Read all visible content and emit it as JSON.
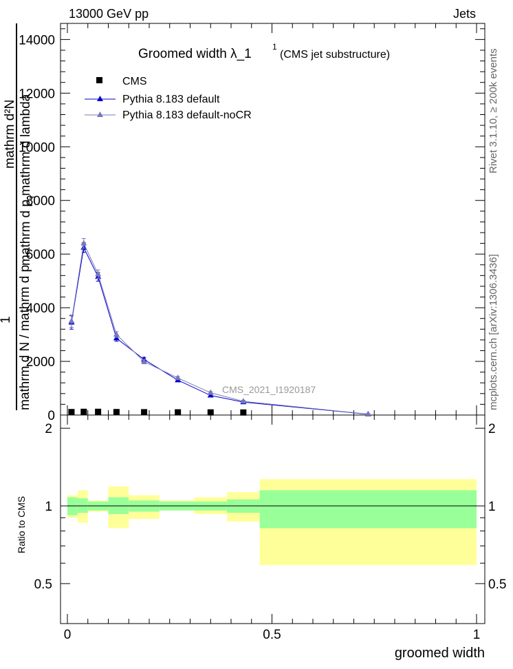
{
  "header": {
    "left": "13000 GeV pp",
    "right": "Jets"
  },
  "side_labels": {
    "rivet": "Rivet 3.1.10, ≥ 200k events",
    "mcplots": "mcplots.cern.ch [arXiv:1306.3436]"
  },
  "chart_data": [
    {
      "type": "line",
      "panel": "main",
      "title_main": "Groomed width  λ_1",
      "title_sup": "1",
      "title_sub": "(CMS jet substructure)",
      "ylabel_upper": "mathrm d²N",
      "ylabel_upper_den": "mathrm d p   mathrm d lambda",
      "ylabel_sub": "T",
      "ylabel_one": "1",
      "ylabel_lower": "mathrm d N / mathrm d p",
      "watermark": "CMS_2021_I1920187",
      "xlim": [
        0,
        1.02
      ],
      "ylim": [
        0,
        14600
      ],
      "yticks": [
        0,
        2000,
        4000,
        6000,
        8000,
        10000,
        12000,
        14000
      ],
      "ytick_labels": [
        "0",
        "2000",
        "4000",
        "6000",
        "8000",
        "10000",
        "12000",
        "14000"
      ],
      "legend": {
        "position": "top-left",
        "entries": [
          "CMS",
          "Pythia 8.183 default",
          "Pythia 8.183 default-noCR"
        ]
      },
      "series": [
        {
          "name": "CMS",
          "color": "#000000",
          "marker": "square",
          "x": [
            0.01,
            0.04,
            0.075,
            0.12,
            0.1875,
            0.27,
            0.35,
            0.43
          ],
          "y": [
            20,
            30,
            30,
            20,
            15,
            10,
            8,
            5
          ]
        },
        {
          "name": "Pythia 8.183 default",
          "color": "#0000cc",
          "marker": "triangle",
          "x": [
            0.01,
            0.04,
            0.075,
            0.12,
            0.1875,
            0.27,
            0.35,
            0.43,
            0.735
          ],
          "y": [
            3450,
            6240,
            5150,
            2860,
            2070,
            1300,
            730,
            480,
            30
          ],
          "err": [
            250,
            180,
            160,
            110,
            80,
            60,
            45,
            40,
            15
          ]
        },
        {
          "name": "Pythia 8.183 default-noCR",
          "color": "#7777bb",
          "marker": "triangle",
          "x": [
            0.01,
            0.04,
            0.075,
            0.12,
            0.1875,
            0.27,
            0.35,
            0.43,
            0.735
          ],
          "y": [
            3500,
            6400,
            5250,
            3000,
            1990,
            1380,
            830,
            510,
            35
          ],
          "err": [
            230,
            180,
            160,
            110,
            80,
            60,
            45,
            40,
            15
          ]
        }
      ]
    },
    {
      "type": "area",
      "panel": "ratio",
      "ylabel": "Ratio to CMS",
      "xlabel": "groomed width",
      "xlim": [
        0,
        1.02
      ],
      "ylim": [
        0.35,
        2.25
      ],
      "xticks": [
        0,
        0.5,
        1
      ],
      "xtick_labels": [
        "0",
        "0.5",
        "1"
      ],
      "yticks": [
        0.5,
        1,
        2
      ],
      "ytick_labels": [
        "0.5",
        "1",
        "2"
      ],
      "bins": [
        0,
        0.025,
        0.05,
        0.1,
        0.15,
        0.225,
        0.31,
        0.39,
        0.47,
        1
      ],
      "band_inner_lo": [
        0.92,
        0.94,
        0.96,
        0.93,
        0.95,
        0.96,
        0.96,
        0.94,
        0.82
      ],
      "band_inner_hi": [
        1.08,
        1.07,
        1.04,
        1.08,
        1.05,
        1.04,
        1.04,
        1.06,
        1.15
      ],
      "band_outer_lo": [
        0.9,
        0.86,
        0.95,
        0.82,
        0.89,
        0.96,
        0.93,
        0.87,
        0.59
      ],
      "band_outer_hi": [
        1.1,
        1.15,
        1.05,
        1.19,
        1.1,
        1.05,
        1.08,
        1.13,
        1.27
      ],
      "colors": {
        "inner": "#99ff99",
        "outer": "#ffff99",
        "line": "#000000"
      }
    }
  ]
}
